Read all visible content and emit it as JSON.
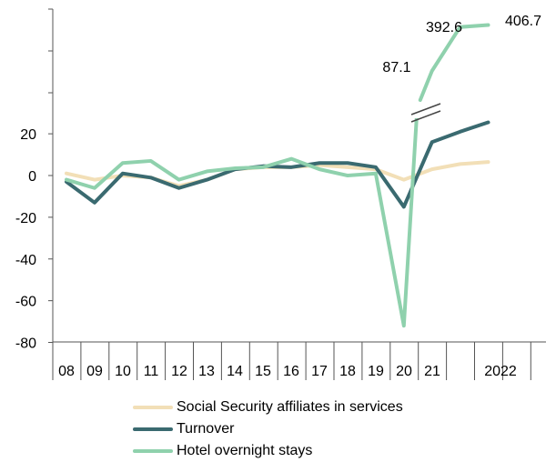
{
  "chart_data": {
    "type": "line",
    "title": "",
    "xlabel": "",
    "ylabel": "",
    "ylim": [
      -80,
      20
    ],
    "yticks": [
      -80,
      -60,
      -40,
      -20,
      0,
      20
    ],
    "x_tick_labels": [
      "08",
      "09",
      "10",
      "11",
      "12",
      "13",
      "14",
      "15",
      "16",
      "17",
      "18",
      "19",
      "20",
      "21",
      "2022"
    ],
    "axis_break": true,
    "grid": false,
    "legend_position": "bottom",
    "x": [
      "08",
      "09",
      "10",
      "11",
      "12",
      "13",
      "14",
      "15",
      "16",
      "17",
      "18",
      "19",
      "20",
      "21",
      "21b",
      "2022"
    ],
    "series": [
      {
        "name": "Social Security affiliates in services",
        "color": "#f2dfb7",
        "values": [
          1,
          -2,
          0,
          -1,
          -5,
          -2,
          3,
          4,
          4,
          5,
          4,
          3,
          -2,
          3,
          5.5,
          6.5
        ]
      },
      {
        "name": "Turnover",
        "color": "#3a6a70",
        "values": [
          -3,
          -13,
          1,
          -1,
          -6,
          -2,
          3,
          4.5,
          4,
          6,
          6,
          4,
          -15,
          16,
          21,
          25.5
        ]
      },
      {
        "name": "Hotel overnight stays",
        "color": "#8fd1ad",
        "values": [
          -2,
          -6,
          6,
          7,
          -2,
          2,
          3.5,
          4,
          8,
          3,
          0,
          1,
          -72,
          87.1,
          392.6,
          406.7
        ]
      }
    ],
    "annotations": [
      "87.1",
      "392.6",
      "406.7"
    ]
  }
}
